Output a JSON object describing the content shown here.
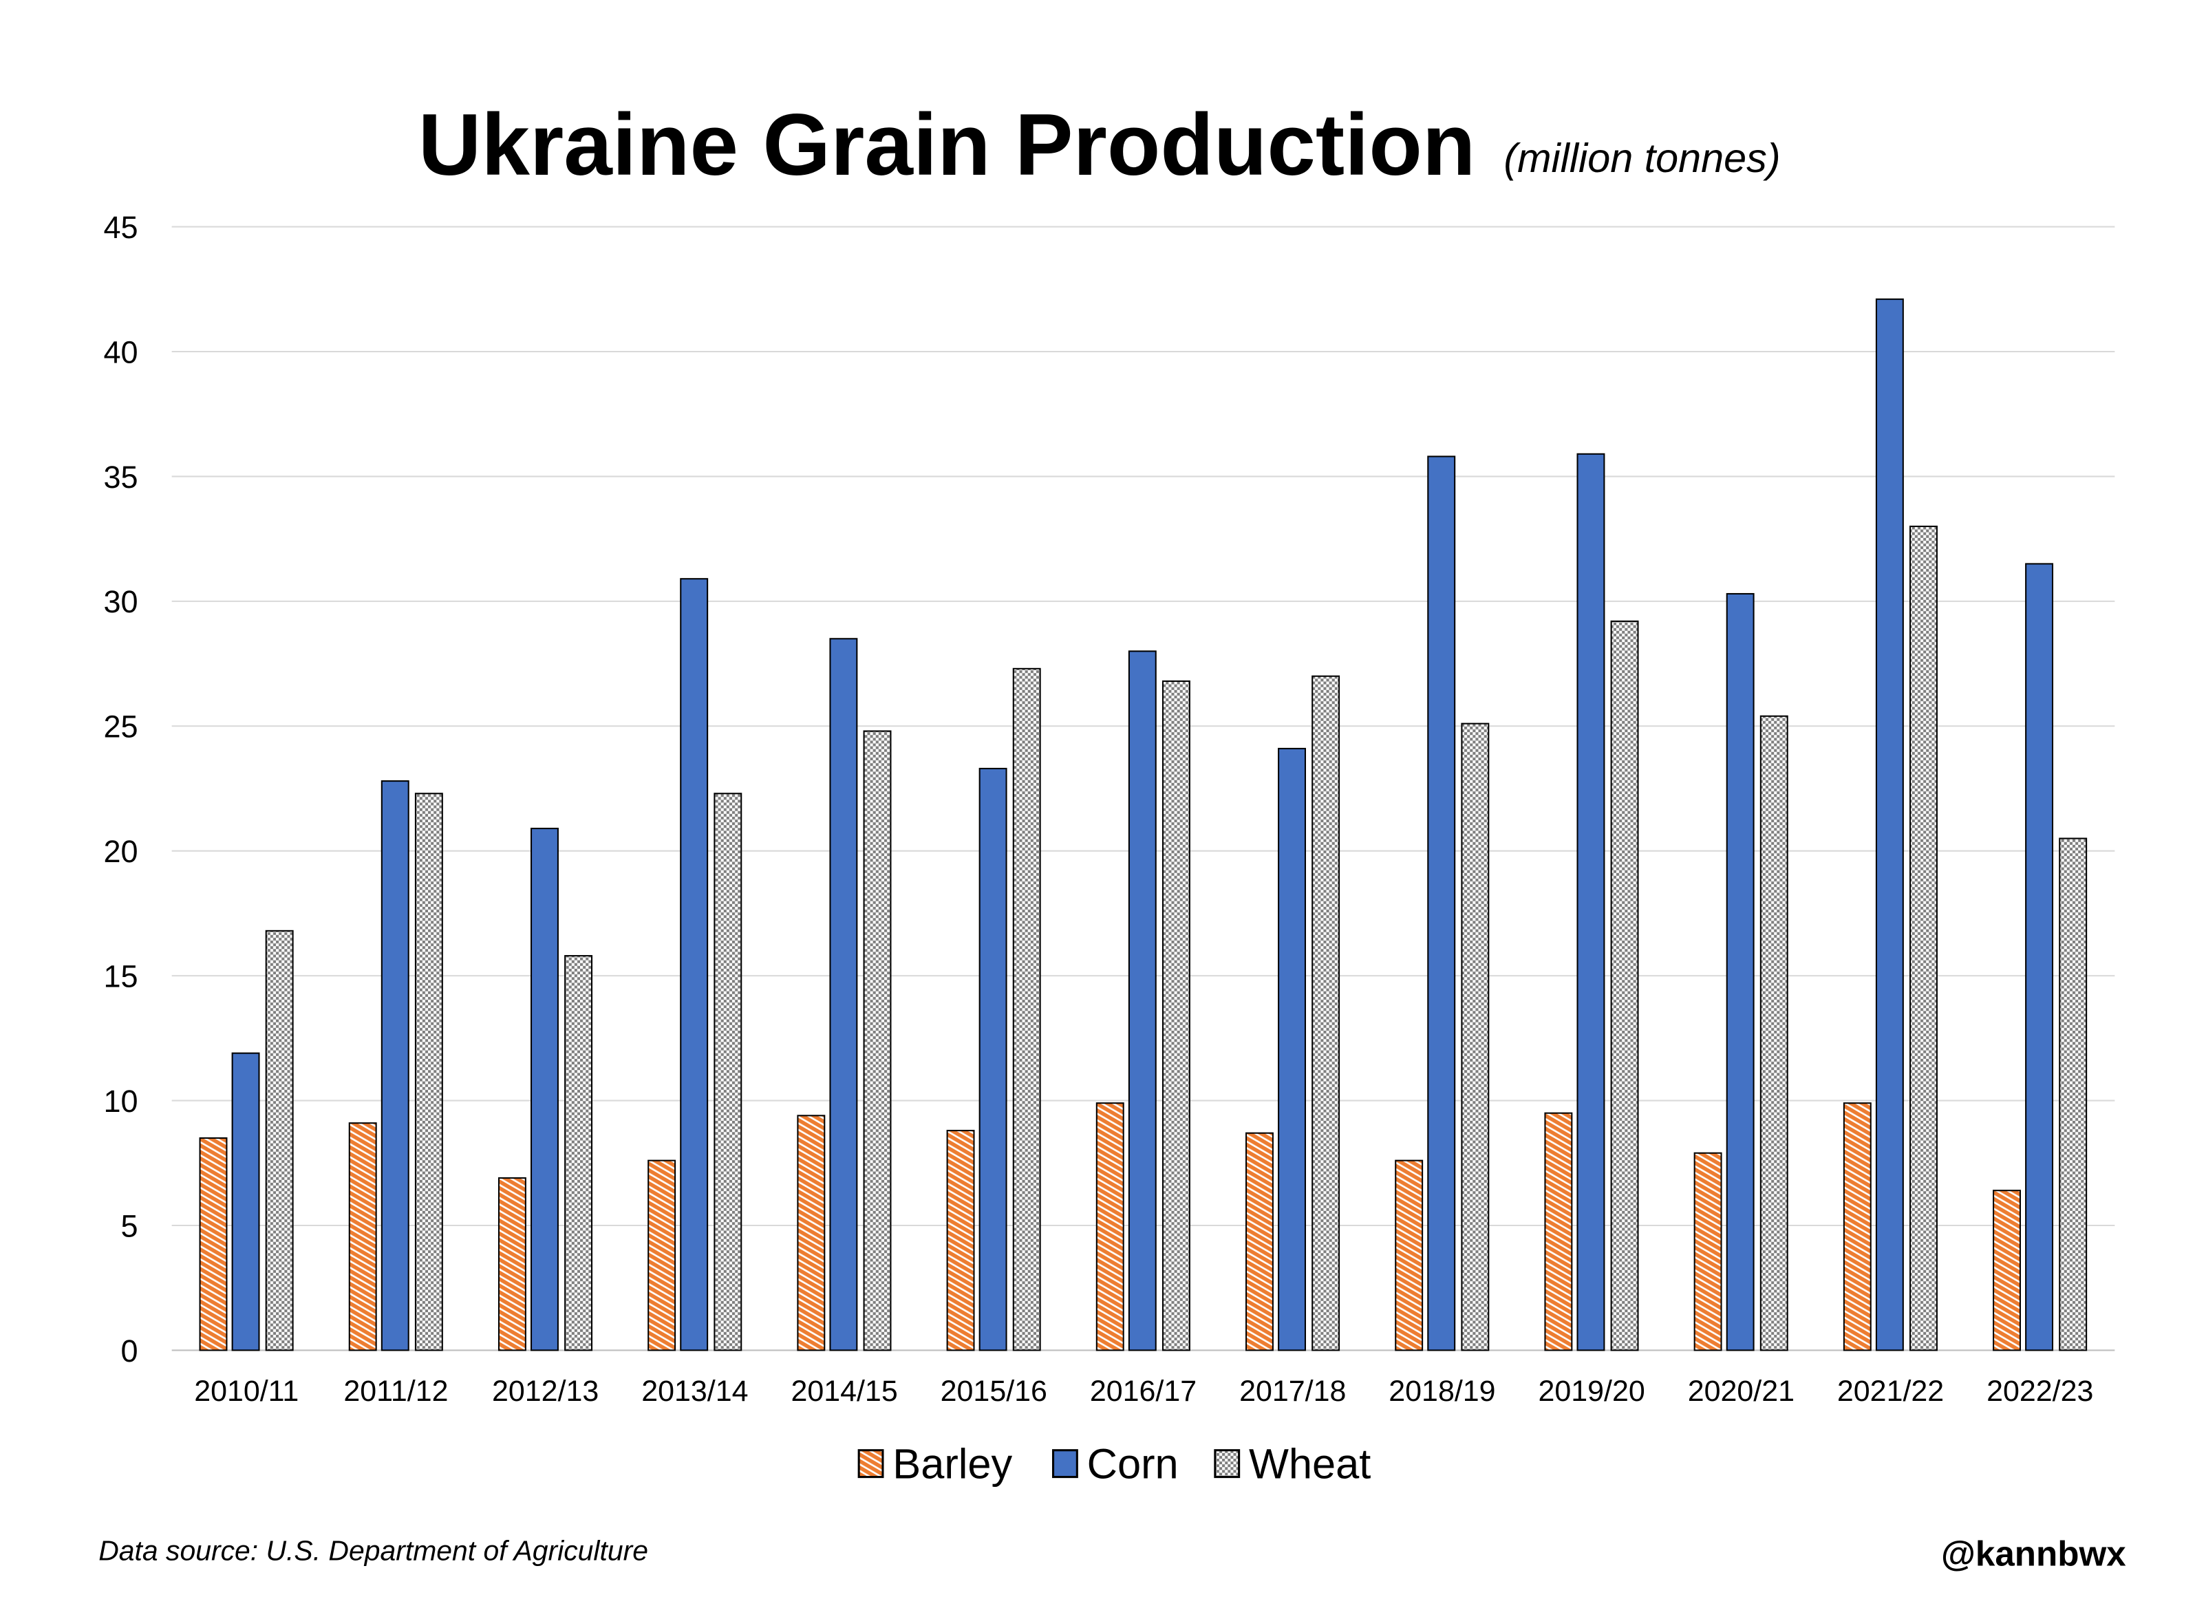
{
  "chart_data": {
    "type": "bar",
    "title": "Ukraine Grain Production",
    "subtitle": "(million tonnes)",
    "xlabel": "",
    "ylabel": "",
    "ylim": [
      0,
      45
    ],
    "yticks": [
      0,
      5,
      10,
      15,
      20,
      25,
      30,
      35,
      40,
      45
    ],
    "grid": true,
    "legend_placement": "bottom",
    "categories": [
      "2010/11",
      "2011/12",
      "2012/13",
      "2013/14",
      "2014/15",
      "2015/16",
      "2016/17",
      "2017/18",
      "2018/19",
      "2019/20",
      "2020/21",
      "2021/22",
      "2022/23"
    ],
    "series": [
      {
        "name": "Barley",
        "color": "#ED7D31",
        "pattern": "diagonal-hatch",
        "values": [
          8.5,
          9.1,
          6.9,
          7.6,
          9.4,
          8.8,
          9.9,
          8.7,
          7.6,
          9.5,
          7.9,
          9.9,
          6.4
        ]
      },
      {
        "name": "Corn",
        "color": "#4472C4",
        "pattern": "solid",
        "values": [
          11.9,
          22.8,
          20.9,
          30.9,
          28.5,
          23.3,
          28.0,
          24.1,
          35.8,
          35.9,
          30.3,
          42.1,
          31.5
        ]
      },
      {
        "name": "Wheat",
        "color": "#A6A6A6",
        "pattern": "checker",
        "values": [
          16.8,
          22.3,
          15.8,
          22.3,
          24.8,
          27.3,
          26.8,
          27.0,
          25.1,
          29.2,
          25.4,
          33.0,
          20.5
        ]
      }
    ]
  },
  "footer": {
    "source": "Data source: U.S. Department of Agriculture",
    "handle": "@kannbwx"
  }
}
